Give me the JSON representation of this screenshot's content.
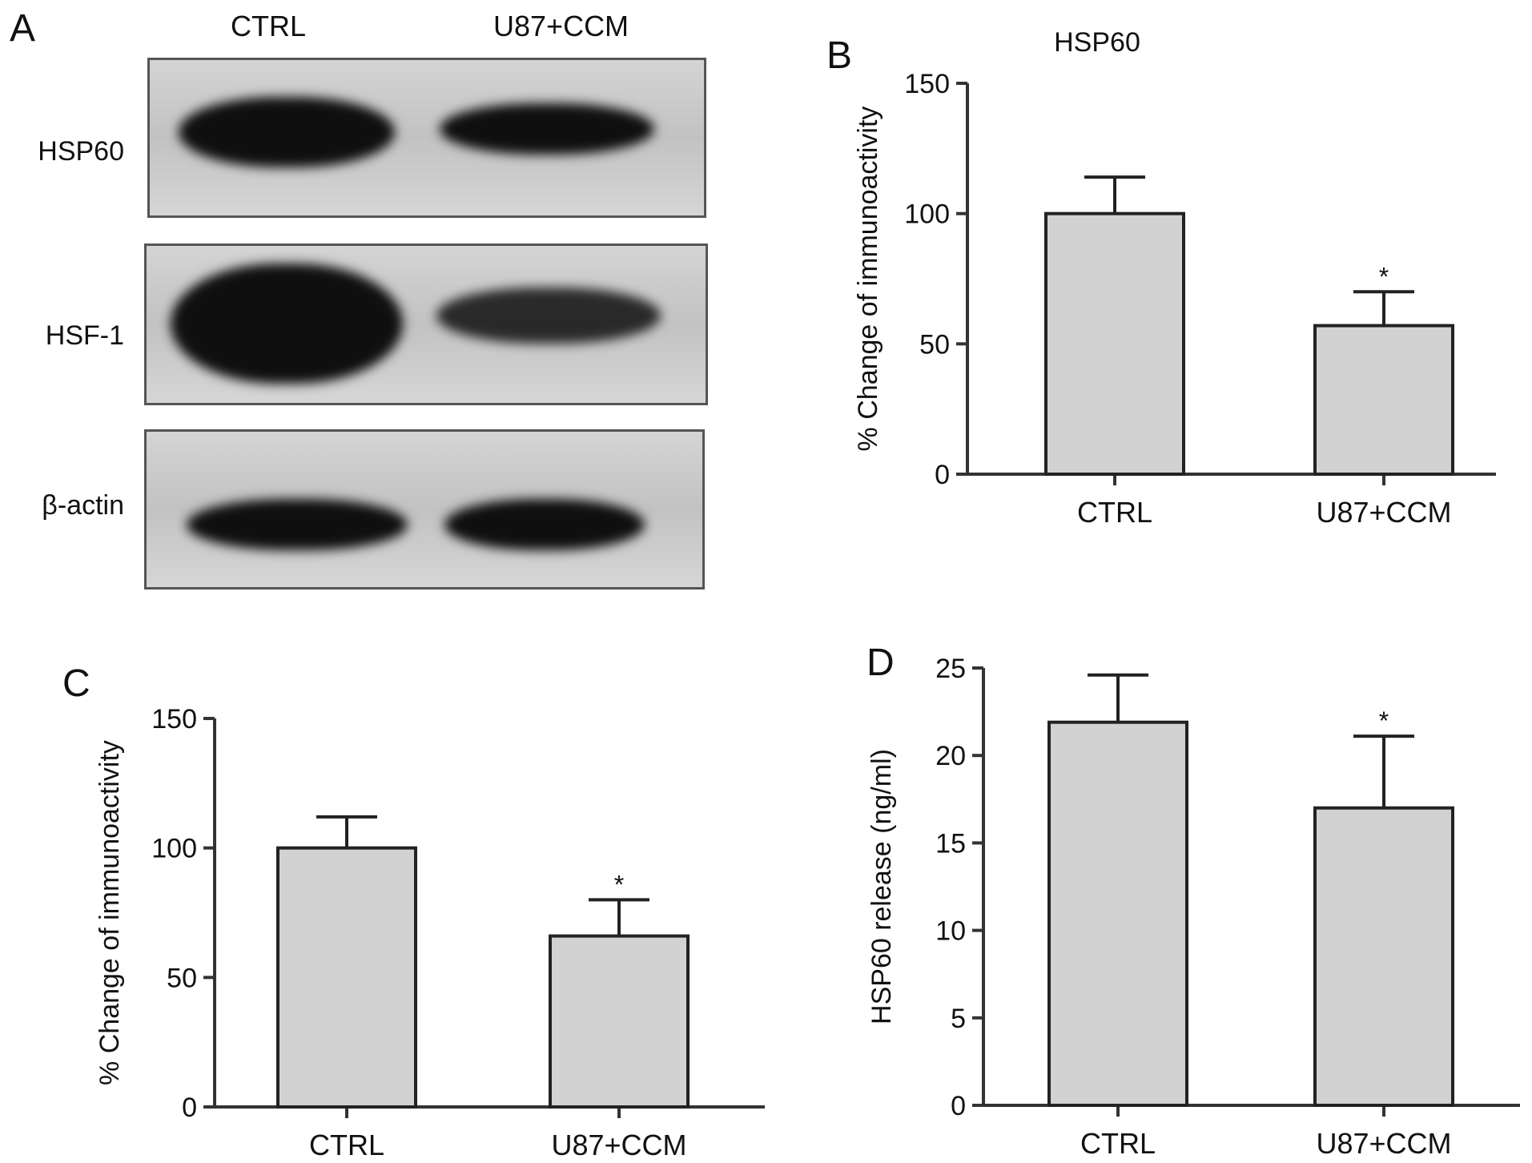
{
  "panel_letters": {
    "a": "A",
    "b": "B",
    "c": "C",
    "d": "D"
  },
  "western_blot": {
    "lanes": [
      "CTRL",
      "U87+CCM"
    ],
    "rows": [
      {
        "label": "HSP60"
      },
      {
        "label": "HSF-1"
      },
      {
        "label": "β-actin"
      }
    ]
  },
  "colors": {
    "bar_fill": "#d2d2d2",
    "bar_stroke": "#222222",
    "axis": "#333333",
    "blot_band": "#0f0f0f"
  },
  "chart_data": [
    {
      "panel": "B",
      "type": "bar",
      "title": "HSP60",
      "xlabel": "",
      "ylabel": "% Change of immunoactivity",
      "categories": [
        "CTRL",
        "U87+CCM"
      ],
      "values": [
        100,
        57
      ],
      "error_upper": [
        114,
        70
      ],
      "significance": [
        "",
        "*"
      ],
      "ylim": [
        0,
        150
      ],
      "yticks": [
        0,
        50,
        100,
        150
      ],
      "grid": false
    },
    {
      "panel": "C",
      "type": "bar",
      "title": "",
      "xlabel": "",
      "ylabel": "% Change of immunoactivity",
      "categories": [
        "CTRL",
        "U87+CCM"
      ],
      "values": [
        100,
        66
      ],
      "error_upper": [
        112,
        80
      ],
      "significance": [
        "",
        "*"
      ],
      "ylim": [
        0,
        150
      ],
      "yticks": [
        0,
        50,
        100,
        150
      ],
      "grid": false
    },
    {
      "panel": "D",
      "type": "bar",
      "title": "",
      "xlabel": "",
      "ylabel": "HSP60 release (ng/ml)",
      "categories": [
        "CTRL",
        "U87+CCM"
      ],
      "values": [
        21.9,
        17.0
      ],
      "error_upper": [
        24.6,
        21.1
      ],
      "significance": [
        "",
        "*"
      ],
      "ylim": [
        0,
        25
      ],
      "yticks": [
        0,
        5,
        10,
        15,
        20,
        25
      ],
      "grid": false
    }
  ]
}
